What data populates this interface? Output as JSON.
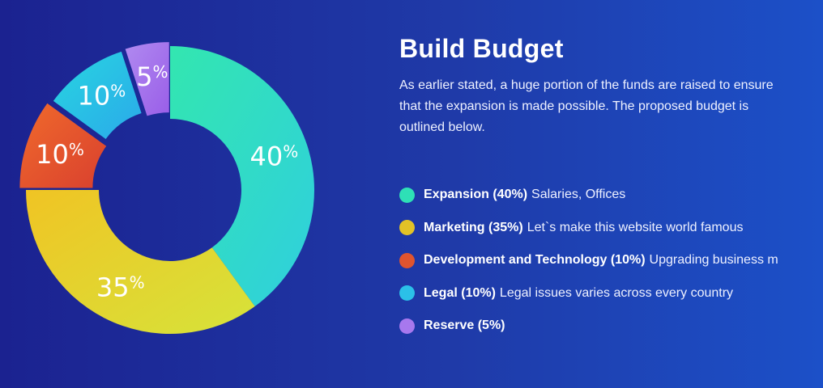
{
  "header": {
    "title": "Build Budget",
    "description": "As earlier stated, a huge portion of the funds are raised to ensure that the expansion is made possible. The proposed budget is outlined below."
  },
  "legend": [
    {
      "name": "Expansion (40%)",
      "text": "Salaries, Offices",
      "color": "#2ee0b6"
    },
    {
      "name": "Marketing (35%)",
      "text": "Let`s make this website world famous",
      "color": "#e2c227"
    },
    {
      "name": "Development and Technology (10%)",
      "text": "Upgrading business m",
      "color": "#e0542e"
    },
    {
      "name": "Legal (10%)",
      "text": "Legal issues varies across every country",
      "color": "#2bc0e8"
    },
    {
      "name": "Reserve (5%)",
      "text": "",
      "color": "#a778ee"
    }
  ],
  "chart_data": {
    "type": "pie",
    "variant": "donut",
    "title": "",
    "categories": [
      "Expansion",
      "Marketing",
      "Development and Technology",
      "Legal",
      "Reserve"
    ],
    "values": [
      40,
      35,
      10,
      10,
      5
    ],
    "labels": [
      "40",
      "35",
      "10",
      "10",
      "5"
    ],
    "unit": "%",
    "colors": [
      [
        "#33e6b0",
        "#2fcfde"
      ],
      [
        "#f0c424",
        "#d6e33a"
      ],
      [
        "#f06a2c",
        "#d9402e"
      ],
      [
        "#28d6e0",
        "#2aa9ea"
      ],
      [
        "#b08af0",
        "#9a5ee8"
      ]
    ]
  }
}
